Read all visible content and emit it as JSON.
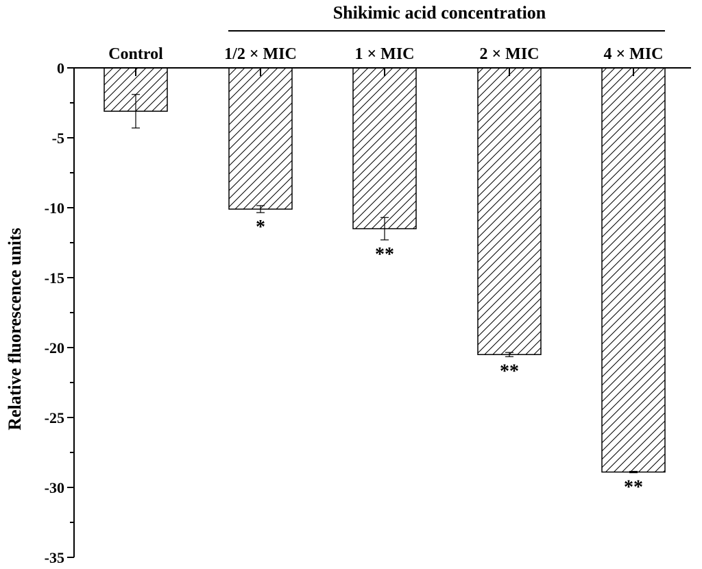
{
  "chart_data": {
    "type": "bar",
    "group_title": "Shikimic acid concentration",
    "ylabel": "Relative fluorescence units",
    "xlabel": "",
    "categories": [
      "Control",
      "1/2 × MIC",
      "1 × MIC",
      "2 × MIC",
      "4 × MIC"
    ],
    "values": [
      -3.1,
      -10.1,
      -11.5,
      -20.5,
      -28.9
    ],
    "errors": [
      1.2,
      0.25,
      0.8,
      0.15,
      0.05
    ],
    "significance": [
      "",
      "*",
      "**",
      "**",
      "**"
    ],
    "ylim": [
      -35,
      0
    ],
    "yticks": [
      0,
      -5,
      -10,
      -15,
      -20,
      -25,
      -30,
      -35
    ],
    "bar_fill": "hatched",
    "grid": false,
    "legend": "none",
    "colors": {
      "bar_edge": "#000000",
      "hatch": "#000000",
      "background": "#ffffff"
    }
  }
}
